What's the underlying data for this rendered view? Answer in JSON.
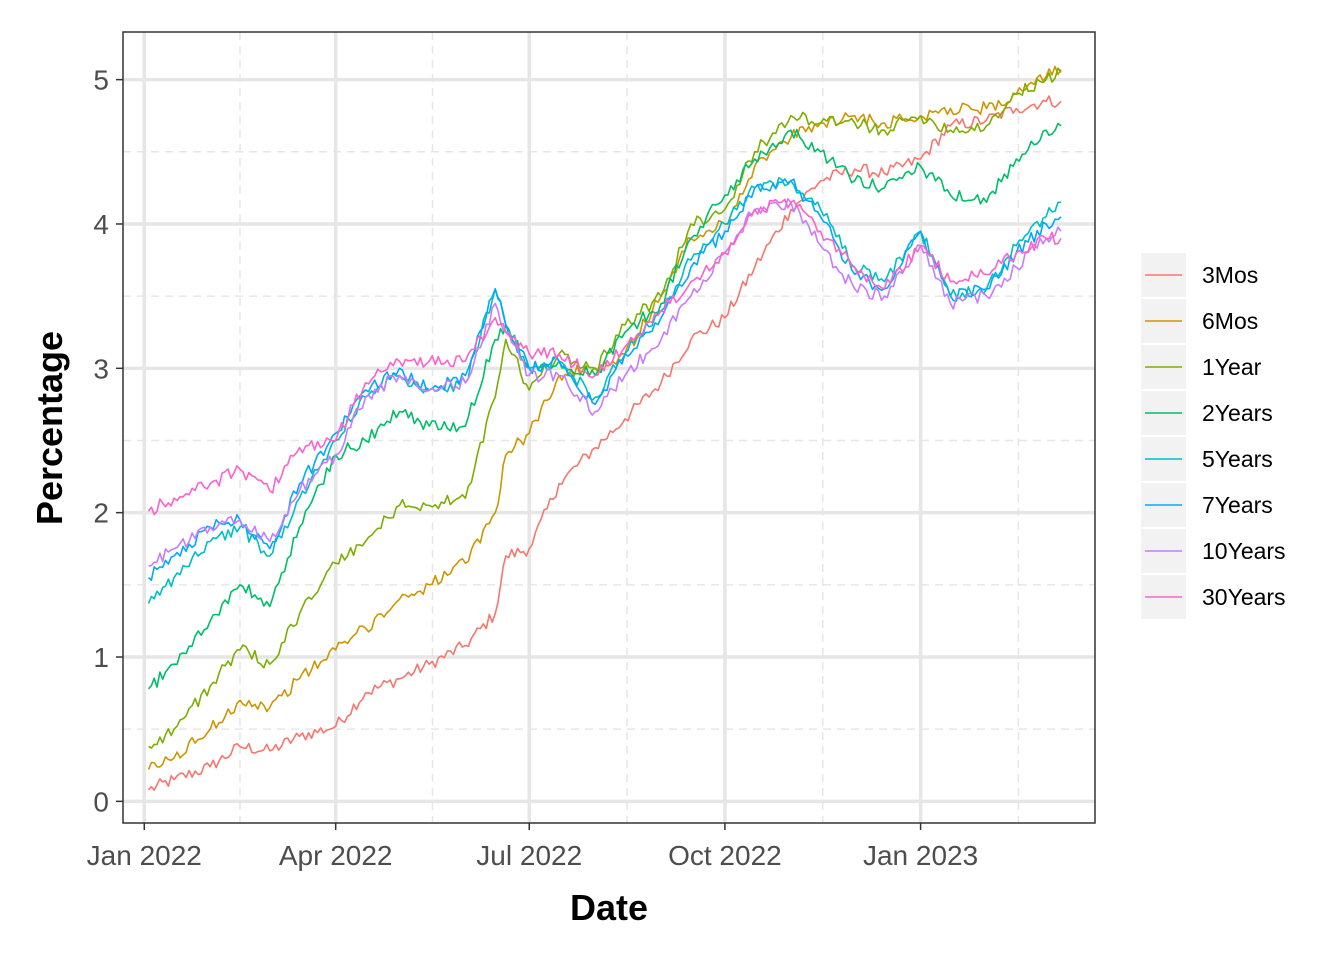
{
  "chart_data": {
    "type": "line",
    "title": "",
    "xlabel": "Date",
    "ylabel": "Percentage",
    "x_range": [
      "2021-12-22",
      "2023-03-24"
    ],
    "y_range": [
      -0.15,
      5.33
    ],
    "x_ticks": [
      {
        "date": "2022-01-01",
        "label": "Jan 2022"
      },
      {
        "date": "2022-04-01",
        "label": "Apr 2022"
      },
      {
        "date": "2022-07-01",
        "label": "Jul 2022"
      },
      {
        "date": "2022-10-01",
        "label": "Oct 2022"
      },
      {
        "date": "2023-01-01",
        "label": "Jan 2023"
      }
    ],
    "y_ticks": [
      0,
      1,
      2,
      3,
      4,
      5
    ],
    "grid": true,
    "legend_position": "right",
    "series": [
      {
        "name": "3Mos",
        "color": "#F8766D",
        "points": [
          [
            "2022-01-03",
            0.08
          ],
          [
            "2022-01-15",
            0.15
          ],
          [
            "2022-02-01",
            0.24
          ],
          [
            "2022-02-15",
            0.38
          ],
          [
            "2022-03-01",
            0.35
          ],
          [
            "2022-03-15",
            0.45
          ],
          [
            "2022-04-01",
            0.52
          ],
          [
            "2022-04-15",
            0.75
          ],
          [
            "2022-05-01",
            0.85
          ],
          [
            "2022-05-15",
            0.95
          ],
          [
            "2022-06-01",
            1.08
          ],
          [
            "2022-06-15",
            1.3
          ],
          [
            "2022-06-20",
            1.7
          ],
          [
            "2022-07-01",
            1.75
          ],
          [
            "2022-07-15",
            2.2
          ],
          [
            "2022-08-01",
            2.45
          ],
          [
            "2022-08-15",
            2.65
          ],
          [
            "2022-09-01",
            2.9
          ],
          [
            "2022-09-15",
            3.2
          ],
          [
            "2022-10-01",
            3.35
          ],
          [
            "2022-10-15",
            3.7
          ],
          [
            "2022-11-01",
            4.1
          ],
          [
            "2022-11-15",
            4.3
          ],
          [
            "2022-12-01",
            4.38
          ],
          [
            "2022-12-15",
            4.35
          ],
          [
            "2023-01-01",
            4.45
          ],
          [
            "2023-01-15",
            4.68
          ],
          [
            "2023-02-01",
            4.72
          ],
          [
            "2023-02-15",
            4.8
          ],
          [
            "2023-03-01",
            4.85
          ],
          [
            "2023-03-08",
            4.85
          ]
        ]
      },
      {
        "name": "6Mos",
        "color": "#CD9600",
        "points": [
          [
            "2022-01-03",
            0.22
          ],
          [
            "2022-01-15",
            0.3
          ],
          [
            "2022-02-01",
            0.5
          ],
          [
            "2022-02-15",
            0.7
          ],
          [
            "2022-03-01",
            0.65
          ],
          [
            "2022-03-15",
            0.85
          ],
          [
            "2022-04-01",
            1.05
          ],
          [
            "2022-04-15",
            1.2
          ],
          [
            "2022-05-01",
            1.4
          ],
          [
            "2022-05-15",
            1.5
          ],
          [
            "2022-06-01",
            1.65
          ],
          [
            "2022-06-15",
            2.0
          ],
          [
            "2022-06-20",
            2.4
          ],
          [
            "2022-07-01",
            2.55
          ],
          [
            "2022-07-15",
            2.95
          ],
          [
            "2022-08-01",
            3.0
          ],
          [
            "2022-08-15",
            3.1
          ],
          [
            "2022-09-01",
            3.5
          ],
          [
            "2022-09-15",
            3.9
          ],
          [
            "2022-10-01",
            4.0
          ],
          [
            "2022-10-15",
            4.4
          ],
          [
            "2022-11-01",
            4.6
          ],
          [
            "2022-11-15",
            4.7
          ],
          [
            "2022-12-01",
            4.75
          ],
          [
            "2022-12-15",
            4.7
          ],
          [
            "2023-01-01",
            4.75
          ],
          [
            "2023-01-15",
            4.8
          ],
          [
            "2023-02-01",
            4.8
          ],
          [
            "2023-02-15",
            4.9
          ],
          [
            "2023-03-01",
            5.02
          ],
          [
            "2023-03-08",
            5.07
          ]
        ]
      },
      {
        "name": "1Year",
        "color": "#7CAE00",
        "points": [
          [
            "2022-01-03",
            0.38
          ],
          [
            "2022-01-15",
            0.5
          ],
          [
            "2022-02-01",
            0.8
          ],
          [
            "2022-02-15",
            1.05
          ],
          [
            "2022-03-01",
            0.95
          ],
          [
            "2022-03-15",
            1.3
          ],
          [
            "2022-04-01",
            1.65
          ],
          [
            "2022-04-15",
            1.8
          ],
          [
            "2022-05-01",
            2.05
          ],
          [
            "2022-05-15",
            2.05
          ],
          [
            "2022-06-01",
            2.1
          ],
          [
            "2022-06-15",
            2.8
          ],
          [
            "2022-06-20",
            3.2
          ],
          [
            "2022-07-01",
            2.85
          ],
          [
            "2022-07-15",
            3.1
          ],
          [
            "2022-08-01",
            3.0
          ],
          [
            "2022-08-15",
            3.3
          ],
          [
            "2022-09-01",
            3.5
          ],
          [
            "2022-09-15",
            4.0
          ],
          [
            "2022-10-01",
            4.1
          ],
          [
            "2022-10-15",
            4.5
          ],
          [
            "2022-11-01",
            4.75
          ],
          [
            "2022-11-15",
            4.7
          ],
          [
            "2022-12-01",
            4.7
          ],
          [
            "2022-12-15",
            4.65
          ],
          [
            "2023-01-01",
            4.75
          ],
          [
            "2023-01-15",
            4.65
          ],
          [
            "2023-02-01",
            4.68
          ],
          [
            "2023-02-15",
            4.9
          ],
          [
            "2023-03-01",
            5.0
          ],
          [
            "2023-03-08",
            5.05
          ]
        ]
      },
      {
        "name": "2Years",
        "color": "#00BE67",
        "points": [
          [
            "2022-01-03",
            0.78
          ],
          [
            "2022-01-15",
            0.95
          ],
          [
            "2022-02-01",
            1.25
          ],
          [
            "2022-02-15",
            1.5
          ],
          [
            "2022-03-01",
            1.35
          ],
          [
            "2022-03-15",
            1.9
          ],
          [
            "2022-04-01",
            2.4
          ],
          [
            "2022-04-15",
            2.5
          ],
          [
            "2022-05-01",
            2.7
          ],
          [
            "2022-05-15",
            2.6
          ],
          [
            "2022-06-01",
            2.6
          ],
          [
            "2022-06-15",
            3.2
          ],
          [
            "2022-06-20",
            3.3
          ],
          [
            "2022-07-01",
            3.0
          ],
          [
            "2022-07-15",
            3.05
          ],
          [
            "2022-08-01",
            2.95
          ],
          [
            "2022-08-15",
            3.25
          ],
          [
            "2022-09-01",
            3.45
          ],
          [
            "2022-09-15",
            3.9
          ],
          [
            "2022-10-01",
            4.2
          ],
          [
            "2022-10-15",
            4.45
          ],
          [
            "2022-11-01",
            4.65
          ],
          [
            "2022-11-15",
            4.5
          ],
          [
            "2022-12-01",
            4.3
          ],
          [
            "2022-12-15",
            4.25
          ],
          [
            "2023-01-01",
            4.4
          ],
          [
            "2023-01-15",
            4.2
          ],
          [
            "2023-02-01",
            4.15
          ],
          [
            "2023-02-15",
            4.45
          ],
          [
            "2023-03-01",
            4.65
          ],
          [
            "2023-03-08",
            4.68
          ]
        ]
      },
      {
        "name": "5Years",
        "color": "#00BFC4",
        "points": [
          [
            "2022-01-03",
            1.37
          ],
          [
            "2022-01-15",
            1.55
          ],
          [
            "2022-02-01",
            1.8
          ],
          [
            "2022-02-15",
            1.9
          ],
          [
            "2022-03-01",
            1.7
          ],
          [
            "2022-03-15",
            2.1
          ],
          [
            "2022-04-01",
            2.5
          ],
          [
            "2022-04-15",
            2.8
          ],
          [
            "2022-05-01",
            2.95
          ],
          [
            "2022-05-15",
            2.85
          ],
          [
            "2022-06-01",
            2.9
          ],
          [
            "2022-06-15",
            3.55
          ],
          [
            "2022-06-20",
            3.3
          ],
          [
            "2022-07-01",
            3.0
          ],
          [
            "2022-07-15",
            3.05
          ],
          [
            "2022-08-01",
            2.8
          ],
          [
            "2022-08-15",
            3.1
          ],
          [
            "2022-09-01",
            3.4
          ],
          [
            "2022-09-15",
            3.75
          ],
          [
            "2022-10-01",
            4.0
          ],
          [
            "2022-10-15",
            4.25
          ],
          [
            "2022-11-01",
            4.3
          ],
          [
            "2022-11-15",
            4.1
          ],
          [
            "2022-12-01",
            3.7
          ],
          [
            "2022-12-15",
            3.6
          ],
          [
            "2023-01-01",
            3.95
          ],
          [
            "2023-01-15",
            3.5
          ],
          [
            "2023-02-01",
            3.55
          ],
          [
            "2023-02-15",
            3.85
          ],
          [
            "2023-03-01",
            4.05
          ],
          [
            "2023-03-08",
            4.15
          ]
        ]
      },
      {
        "name": "7Years",
        "color": "#00A9FF",
        "points": [
          [
            "2022-01-03",
            1.55
          ],
          [
            "2022-01-15",
            1.7
          ],
          [
            "2022-02-01",
            1.9
          ],
          [
            "2022-02-15",
            1.95
          ],
          [
            "2022-03-01",
            1.75
          ],
          [
            "2022-03-15",
            2.2
          ],
          [
            "2022-04-01",
            2.55
          ],
          [
            "2022-04-15",
            2.85
          ],
          [
            "2022-05-01",
            3.0
          ],
          [
            "2022-05-15",
            2.85
          ],
          [
            "2022-06-01",
            2.95
          ],
          [
            "2022-06-15",
            3.55
          ],
          [
            "2022-06-20",
            3.3
          ],
          [
            "2022-07-01",
            3.0
          ],
          [
            "2022-07-15",
            3.05
          ],
          [
            "2022-08-01",
            2.75
          ],
          [
            "2022-08-15",
            3.1
          ],
          [
            "2022-09-01",
            3.35
          ],
          [
            "2022-09-15",
            3.7
          ],
          [
            "2022-10-01",
            3.95
          ],
          [
            "2022-10-15",
            4.25
          ],
          [
            "2022-11-01",
            4.3
          ],
          [
            "2022-11-15",
            4.05
          ],
          [
            "2022-12-01",
            3.65
          ],
          [
            "2022-12-15",
            3.55
          ],
          [
            "2023-01-01",
            3.95
          ],
          [
            "2023-01-15",
            3.5
          ],
          [
            "2023-02-01",
            3.55
          ],
          [
            "2023-02-15",
            3.8
          ],
          [
            "2023-03-01",
            4.0
          ],
          [
            "2023-03-08",
            4.05
          ]
        ]
      },
      {
        "name": "10Years",
        "color": "#C77CFF",
        "points": [
          [
            "2022-01-03",
            1.63
          ],
          [
            "2022-01-15",
            1.75
          ],
          [
            "2022-02-01",
            1.9
          ],
          [
            "2022-02-15",
            1.95
          ],
          [
            "2022-03-01",
            1.8
          ],
          [
            "2022-03-15",
            2.15
          ],
          [
            "2022-04-01",
            2.4
          ],
          [
            "2022-04-15",
            2.8
          ],
          [
            "2022-05-01",
            2.95
          ],
          [
            "2022-05-15",
            2.85
          ],
          [
            "2022-06-01",
            2.9
          ],
          [
            "2022-06-15",
            3.45
          ],
          [
            "2022-06-20",
            3.25
          ],
          [
            "2022-07-01",
            2.95
          ],
          [
            "2022-07-15",
            2.95
          ],
          [
            "2022-08-01",
            2.7
          ],
          [
            "2022-08-15",
            2.95
          ],
          [
            "2022-09-01",
            3.2
          ],
          [
            "2022-09-15",
            3.5
          ],
          [
            "2022-10-01",
            3.8
          ],
          [
            "2022-10-15",
            4.1
          ],
          [
            "2022-11-01",
            4.15
          ],
          [
            "2022-11-15",
            3.85
          ],
          [
            "2022-12-01",
            3.55
          ],
          [
            "2022-12-15",
            3.5
          ],
          [
            "2023-01-01",
            3.85
          ],
          [
            "2023-01-15",
            3.45
          ],
          [
            "2023-02-01",
            3.5
          ],
          [
            "2023-02-15",
            3.7
          ],
          [
            "2023-03-01",
            3.9
          ],
          [
            "2023-03-08",
            3.95
          ]
        ]
      },
      {
        "name": "30Years",
        "color": "#FF61CC",
        "points": [
          [
            "2022-01-03",
            2.01
          ],
          [
            "2022-01-15",
            2.1
          ],
          [
            "2022-02-01",
            2.2
          ],
          [
            "2022-02-15",
            2.3
          ],
          [
            "2022-03-01",
            2.15
          ],
          [
            "2022-03-15",
            2.45
          ],
          [
            "2022-04-01",
            2.5
          ],
          [
            "2022-04-15",
            2.9
          ],
          [
            "2022-05-01",
            3.05
          ],
          [
            "2022-05-15",
            3.05
          ],
          [
            "2022-06-01",
            3.05
          ],
          [
            "2022-06-15",
            3.35
          ],
          [
            "2022-06-20",
            3.25
          ],
          [
            "2022-07-01",
            3.1
          ],
          [
            "2022-07-15",
            3.1
          ],
          [
            "2022-08-01",
            2.95
          ],
          [
            "2022-08-15",
            3.15
          ],
          [
            "2022-09-01",
            3.4
          ],
          [
            "2022-09-15",
            3.6
          ],
          [
            "2022-10-01",
            3.8
          ],
          [
            "2022-10-15",
            4.1
          ],
          [
            "2022-11-01",
            4.15
          ],
          [
            "2022-11-15",
            3.95
          ],
          [
            "2022-12-01",
            3.7
          ],
          [
            "2022-12-15",
            3.55
          ],
          [
            "2023-01-01",
            3.85
          ],
          [
            "2023-01-15",
            3.6
          ],
          [
            "2023-02-01",
            3.65
          ],
          [
            "2023-02-15",
            3.8
          ],
          [
            "2023-03-01",
            3.9
          ],
          [
            "2023-03-08",
            3.9
          ]
        ]
      }
    ]
  }
}
